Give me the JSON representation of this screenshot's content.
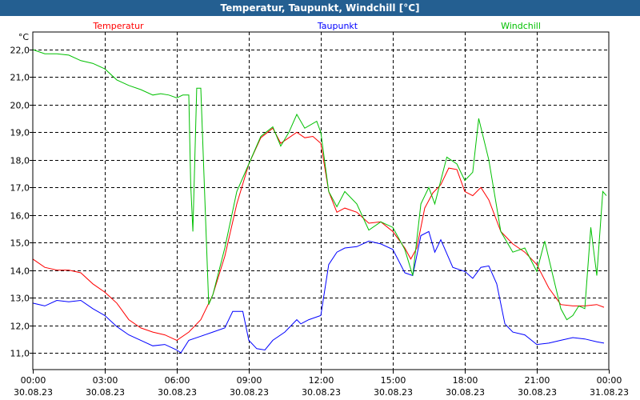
{
  "window": {
    "title": "Temperatur, Taupunkt, Windchill [°C]"
  },
  "chart_data": {
    "type": "line",
    "title": "Temperatur, Taupunkt, Windchill [°C]",
    "ylabel": "°C",
    "xlabel": "",
    "xlim": [
      0,
      24
    ],
    "ylim": [
      10.4,
      22.6
    ],
    "grid": true,
    "yticks": [
      11,
      12,
      13,
      14,
      15,
      16,
      17,
      18,
      19,
      20,
      21,
      22
    ],
    "ytick_labels": [
      "11,0",
      "12,0",
      "13,0",
      "14,0",
      "15,0",
      "16,0",
      "17,0",
      "18,0",
      "19,0",
      "20,0",
      "21,0",
      "22,0"
    ],
    "xticks": [
      0,
      3,
      6,
      9,
      12,
      15,
      18,
      21,
      24
    ],
    "xtick_labels": [
      {
        "time": "00:00",
        "date": "30.08.23"
      },
      {
        "time": "03:00",
        "date": "30.08.23"
      },
      {
        "time": "06:00",
        "date": "30.08.23"
      },
      {
        "time": "09:00",
        "date": "30.08.23"
      },
      {
        "time": "12:00",
        "date": "30.08.23"
      },
      {
        "time": "15:00",
        "date": "30.08.23"
      },
      {
        "time": "18:00",
        "date": "30.08.23"
      },
      {
        "time": "21:00",
        "date": "30.08.23"
      },
      {
        "time": "00:00",
        "date": "31.08.23"
      }
    ],
    "series": [
      {
        "name": "Temperatur",
        "color": "#ff0000",
        "legend": "left",
        "points": [
          [
            0,
            14.4
          ],
          [
            0.5,
            14.1
          ],
          [
            1,
            14.0
          ],
          [
            1.5,
            14.0
          ],
          [
            2,
            13.9
          ],
          [
            2.5,
            13.5
          ],
          [
            3,
            13.2
          ],
          [
            3.5,
            12.8
          ],
          [
            4,
            12.2
          ],
          [
            4.5,
            11.9
          ],
          [
            5,
            11.75
          ],
          [
            5.5,
            11.65
          ],
          [
            6,
            11.45
          ],
          [
            6.5,
            11.75
          ],
          [
            7,
            12.2
          ],
          [
            7.5,
            13.1
          ],
          [
            8,
            14.5
          ],
          [
            8.5,
            16.4
          ],
          [
            9,
            17.85
          ],
          [
            9.5,
            18.8
          ],
          [
            10,
            19.15
          ],
          [
            10.33,
            18.6
          ],
          [
            10.67,
            18.8
          ],
          [
            11,
            19.0
          ],
          [
            11.33,
            18.8
          ],
          [
            11.67,
            18.85
          ],
          [
            12,
            18.6
          ],
          [
            12.33,
            16.85
          ],
          [
            12.67,
            16.1
          ],
          [
            13,
            16.25
          ],
          [
            13.5,
            16.1
          ],
          [
            14,
            15.7
          ],
          [
            14.5,
            15.75
          ],
          [
            15,
            15.4
          ],
          [
            15.5,
            14.8
          ],
          [
            15.75,
            14.4
          ],
          [
            16,
            14.8
          ],
          [
            16.33,
            16.25
          ],
          [
            16.67,
            16.8
          ],
          [
            17,
            17.1
          ],
          [
            17.33,
            17.7
          ],
          [
            17.67,
            17.65
          ],
          [
            18,
            16.85
          ],
          [
            18.33,
            16.7
          ],
          [
            18.67,
            17.0
          ],
          [
            19,
            16.55
          ],
          [
            19.5,
            15.4
          ],
          [
            20,
            14.95
          ],
          [
            20.5,
            14.65
          ],
          [
            21,
            14.2
          ],
          [
            21.5,
            13.35
          ],
          [
            22,
            12.75
          ],
          [
            22.5,
            12.7
          ],
          [
            23,
            12.7
          ],
          [
            23.5,
            12.75
          ],
          [
            23.8,
            12.65
          ]
        ]
      },
      {
        "name": "Taupunkt",
        "color": "#0000ff",
        "legend": "center",
        "points": [
          [
            0,
            12.8
          ],
          [
            0.5,
            12.7
          ],
          [
            1,
            12.9
          ],
          [
            1.5,
            12.85
          ],
          [
            2,
            12.9
          ],
          [
            2.5,
            12.6
          ],
          [
            3,
            12.35
          ],
          [
            3.5,
            11.95
          ],
          [
            4,
            11.65
          ],
          [
            4.5,
            11.45
          ],
          [
            5,
            11.25
          ],
          [
            5.5,
            11.3
          ],
          [
            6,
            11.1
          ],
          [
            6.17,
            11.0
          ],
          [
            6.5,
            11.45
          ],
          [
            7,
            11.6
          ],
          [
            7.5,
            11.75
          ],
          [
            8,
            11.9
          ],
          [
            8.33,
            12.5
          ],
          [
            8.75,
            12.5
          ],
          [
            9,
            11.45
          ],
          [
            9.33,
            11.15
          ],
          [
            9.67,
            11.1
          ],
          [
            10,
            11.45
          ],
          [
            10.5,
            11.75
          ],
          [
            11,
            12.2
          ],
          [
            11.17,
            12.05
          ],
          [
            11.5,
            12.2
          ],
          [
            12,
            12.35
          ],
          [
            12.33,
            14.2
          ],
          [
            12.67,
            14.65
          ],
          [
            13,
            14.8
          ],
          [
            13.5,
            14.85
          ],
          [
            14,
            15.05
          ],
          [
            14.5,
            14.95
          ],
          [
            15,
            14.75
          ],
          [
            15.5,
            13.9
          ],
          [
            15.83,
            13.8
          ],
          [
            16.17,
            15.25
          ],
          [
            16.5,
            15.4
          ],
          [
            16.75,
            14.65
          ],
          [
            17,
            15.1
          ],
          [
            17.5,
            14.1
          ],
          [
            18,
            13.95
          ],
          [
            18.33,
            13.7
          ],
          [
            18.67,
            14.1
          ],
          [
            19,
            14.15
          ],
          [
            19.33,
            13.5
          ],
          [
            19.67,
            12.05
          ],
          [
            20,
            11.75
          ],
          [
            20.5,
            11.65
          ],
          [
            21,
            11.3
          ],
          [
            21.5,
            11.35
          ],
          [
            22,
            11.45
          ],
          [
            22.5,
            11.55
          ],
          [
            23,
            11.5
          ],
          [
            23.5,
            11.4
          ],
          [
            23.8,
            11.35
          ]
        ]
      },
      {
        "name": "Windchill",
        "color": "#00c000",
        "legend": "right",
        "points": [
          [
            0,
            22.0
          ],
          [
            0.5,
            21.85
          ],
          [
            1,
            21.85
          ],
          [
            1.5,
            21.8
          ],
          [
            2,
            21.6
          ],
          [
            2.5,
            21.5
          ],
          [
            3,
            21.3
          ],
          [
            3.5,
            20.9
          ],
          [
            4,
            20.7
          ],
          [
            4.5,
            20.55
          ],
          [
            5,
            20.35
          ],
          [
            5.33,
            20.4
          ],
          [
            5.67,
            20.35
          ],
          [
            6,
            20.25
          ],
          [
            6.25,
            20.35
          ],
          [
            6.5,
            20.35
          ],
          [
            6.58,
            17.1
          ],
          [
            6.67,
            15.4
          ],
          [
            6.83,
            20.6
          ],
          [
            7,
            20.6
          ],
          [
            7.17,
            16.55
          ],
          [
            7.33,
            12.75
          ],
          [
            7.5,
            13.1
          ],
          [
            8,
            14.8
          ],
          [
            8.5,
            16.85
          ],
          [
            9,
            17.85
          ],
          [
            9.5,
            18.85
          ],
          [
            10,
            19.2
          ],
          [
            10.33,
            18.5
          ],
          [
            10.67,
            19.0
          ],
          [
            11,
            19.65
          ],
          [
            11.33,
            19.15
          ],
          [
            11.83,
            19.4
          ],
          [
            12,
            19.0
          ],
          [
            12.33,
            16.85
          ],
          [
            12.67,
            16.3
          ],
          [
            13,
            16.85
          ],
          [
            13.5,
            16.4
          ],
          [
            14,
            15.45
          ],
          [
            14.5,
            15.75
          ],
          [
            15,
            15.55
          ],
          [
            15.5,
            14.75
          ],
          [
            15.83,
            13.8
          ],
          [
            16.17,
            16.4
          ],
          [
            16.5,
            17.0
          ],
          [
            16.75,
            16.4
          ],
          [
            17.25,
            18.1
          ],
          [
            17.67,
            17.85
          ],
          [
            18,
            17.25
          ],
          [
            18.33,
            17.55
          ],
          [
            18.58,
            19.5
          ],
          [
            19,
            18.0
          ],
          [
            19.5,
            15.4
          ],
          [
            20,
            14.65
          ],
          [
            20.5,
            14.8
          ],
          [
            21,
            13.95
          ],
          [
            21.33,
            15.05
          ],
          [
            21.67,
            13.8
          ],
          [
            22,
            12.6
          ],
          [
            22.25,
            12.2
          ],
          [
            22.5,
            12.35
          ],
          [
            22.75,
            12.7
          ],
          [
            23,
            12.6
          ],
          [
            23.25,
            15.55
          ],
          [
            23.5,
            13.8
          ],
          [
            23.75,
            16.85
          ],
          [
            23.9,
            16.7
          ]
        ]
      }
    ]
  }
}
